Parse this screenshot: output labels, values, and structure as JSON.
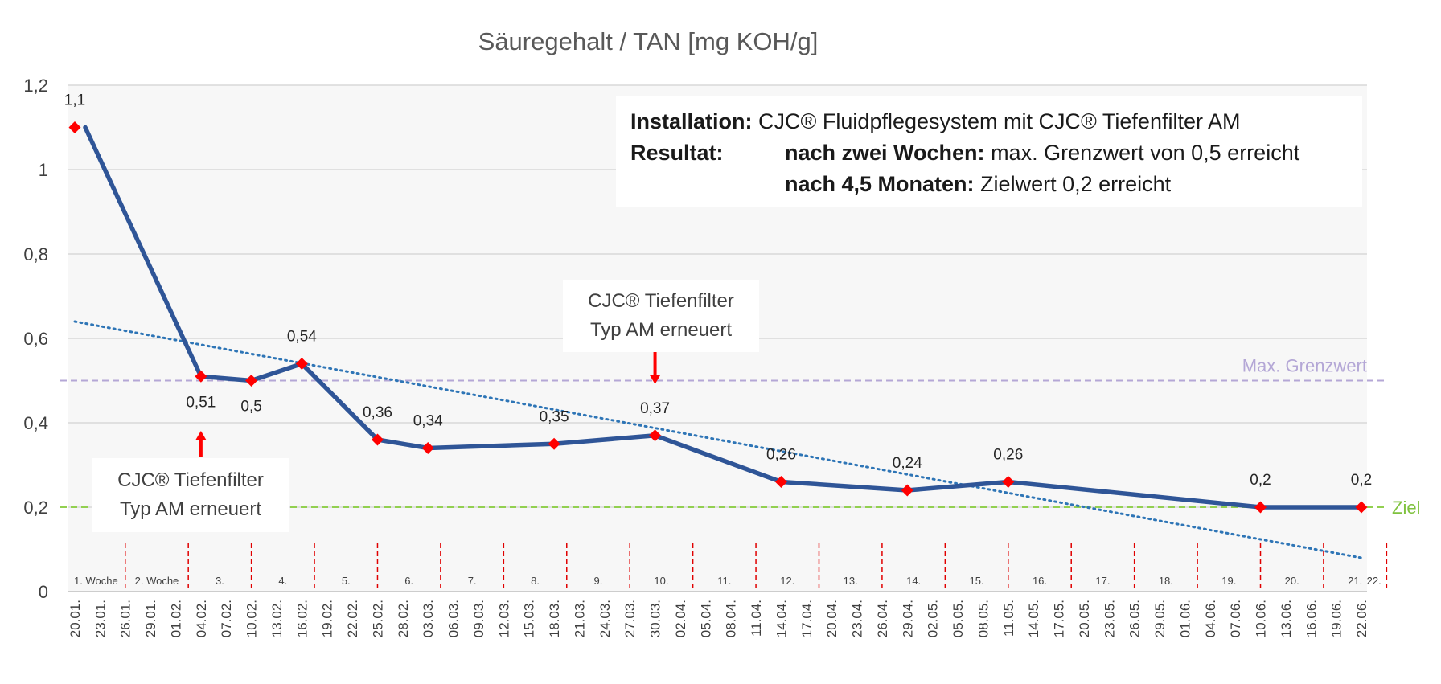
{
  "chart_data": {
    "type": "line",
    "title": "Säuregehalt / TAN [mg KOH/g]",
    "ylim": [
      0,
      1.2
    ],
    "yticks": [
      "0",
      "0,2",
      "0,4",
      "0,6",
      "0,8",
      "1",
      "1,2"
    ],
    "grid": true,
    "x_ticks": [
      "20.01.",
      "23.01.",
      "26.01.",
      "29.01.",
      "01.02.",
      "04.02.",
      "07.02.",
      "10.02.",
      "13.02.",
      "16.02.",
      "19.02.",
      "22.02.",
      "25.02.",
      "28.02.",
      "03.03.",
      "06.03.",
      "09.03.",
      "12.03.",
      "15.03.",
      "18.03.",
      "21.03.",
      "24.03.",
      "27.03.",
      "30.03.",
      "02.04.",
      "05.04.",
      "08.04.",
      "11.04.",
      "14.04.",
      "17.04.",
      "20.04.",
      "23.04.",
      "26.04.",
      "29.04.",
      "02.05.",
      "05.05.",
      "08.05.",
      "11.05.",
      "14.05.",
      "17.05.",
      "20.05.",
      "23.05.",
      "26.05.",
      "29.05.",
      "01.06.",
      "04.06.",
      "07.06.",
      "10.06.",
      "13.06.",
      "16.06.",
      "19.06.",
      "22.06."
    ],
    "weeks": [
      "1. Woche",
      "2. Woche",
      "3.",
      "4.",
      "5.",
      "6.",
      "7.",
      "8.",
      "9.",
      "10.",
      "11.",
      "12.",
      "13.",
      "14.",
      "15.",
      "16.",
      "17.",
      "18.",
      "19.",
      "20.",
      "21.",
      "22."
    ],
    "series": [
      {
        "color": "#2f5597",
        "marker_color": "#ff0000",
        "points": [
          {
            "x": "20.01.",
            "y": 1.1,
            "label": "1,1"
          },
          {
            "x": "04.02.",
            "y": 0.51,
            "label": "0,51"
          },
          {
            "x": "10.02.",
            "y": 0.5,
            "label": "0,5"
          },
          {
            "x": "16.02.",
            "y": 0.54,
            "label": "0,54"
          },
          {
            "x": "25.02.",
            "y": 0.36,
            "label": "0,36"
          },
          {
            "x": "03.03.",
            "y": 0.34,
            "label": "0,34"
          },
          {
            "x": "18.03.",
            "y": 0.35,
            "label": "0,35"
          },
          {
            "x": "30.03.",
            "y": 0.37,
            "label": "0,37"
          },
          {
            "x": "14.04.",
            "y": 0.26,
            "label": "0,26"
          },
          {
            "x": "29.04.",
            "y": 0.24,
            "label": "0,24"
          },
          {
            "x": "11.05.",
            "y": 0.26,
            "label": "0,26"
          },
          {
            "x": "10.06.",
            "y": 0.2,
            "label": "0,2"
          },
          {
            "x": "22.06.",
            "y": 0.2,
            "label": "0,2"
          }
        ]
      }
    ],
    "trendline": {
      "style": "dotted",
      "color": "#2e75b6",
      "start": {
        "x": "20.01.",
        "y": 0.64
      },
      "end": {
        "x": "22.06.",
        "y": 0.08
      }
    },
    "reference_lines": [
      {
        "name": "Max. Grenzwert",
        "y": 0.5,
        "color": "#b4a7d6"
      },
      {
        "name": "Ziel",
        "y": 0.2,
        "color": "#92d050"
      }
    ],
    "annotations": {
      "info": {
        "installation_label": "Installation:",
        "installation_text": "CJC® Fluidpflegesystem mit CJC® Tiefenfilter AM",
        "result_label": "Resultat:",
        "result_1_bold": "nach zwei Wochen:",
        "result_1_text": "max. Grenzwert von 0,5 erreicht",
        "result_2_bold": "nach 4,5 Monaten:",
        "result_2_text": "Zielwert 0,2 erreicht"
      },
      "callout_1": {
        "line1": "CJC® Tiefenfilter",
        "line2": "Typ AM erneuert",
        "at_x": "04.02."
      },
      "callout_2": {
        "line1": "CJC® Tiefenfilter",
        "line2": "Typ AM erneuert",
        "at_x": "30.03."
      }
    }
  }
}
